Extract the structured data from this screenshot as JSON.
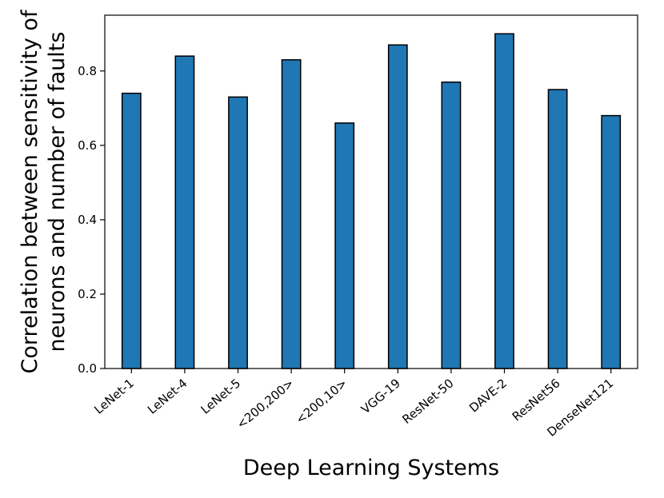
{
  "chart_data": {
    "type": "bar",
    "title": "",
    "xlabel": "Deep Learning Systems",
    "ylabel_lines": [
      "Correlation between sensitivity of",
      "neurons and number of faults"
    ],
    "categories": [
      "LeNet-1",
      "LeNet-4",
      "LeNet-5",
      "<200,200>",
      "<200,10>",
      "VGG-19",
      "ResNet-50",
      "DAVE-2",
      "ResNet56",
      "DenseNet121"
    ],
    "values": [
      0.74,
      0.84,
      0.73,
      0.83,
      0.66,
      0.87,
      0.77,
      0.9,
      0.75,
      0.68
    ],
    "ylim": [
      0,
      0.95
    ],
    "yticks": [
      0.0,
      0.2,
      0.4,
      0.6,
      0.8
    ],
    "ytick_labels": [
      "0.0",
      "0.2",
      "0.4",
      "0.6",
      "0.8"
    ],
    "bar_color": "#1f77b4",
    "edge_color": "#000000",
    "grid": false,
    "legend": "none"
  }
}
